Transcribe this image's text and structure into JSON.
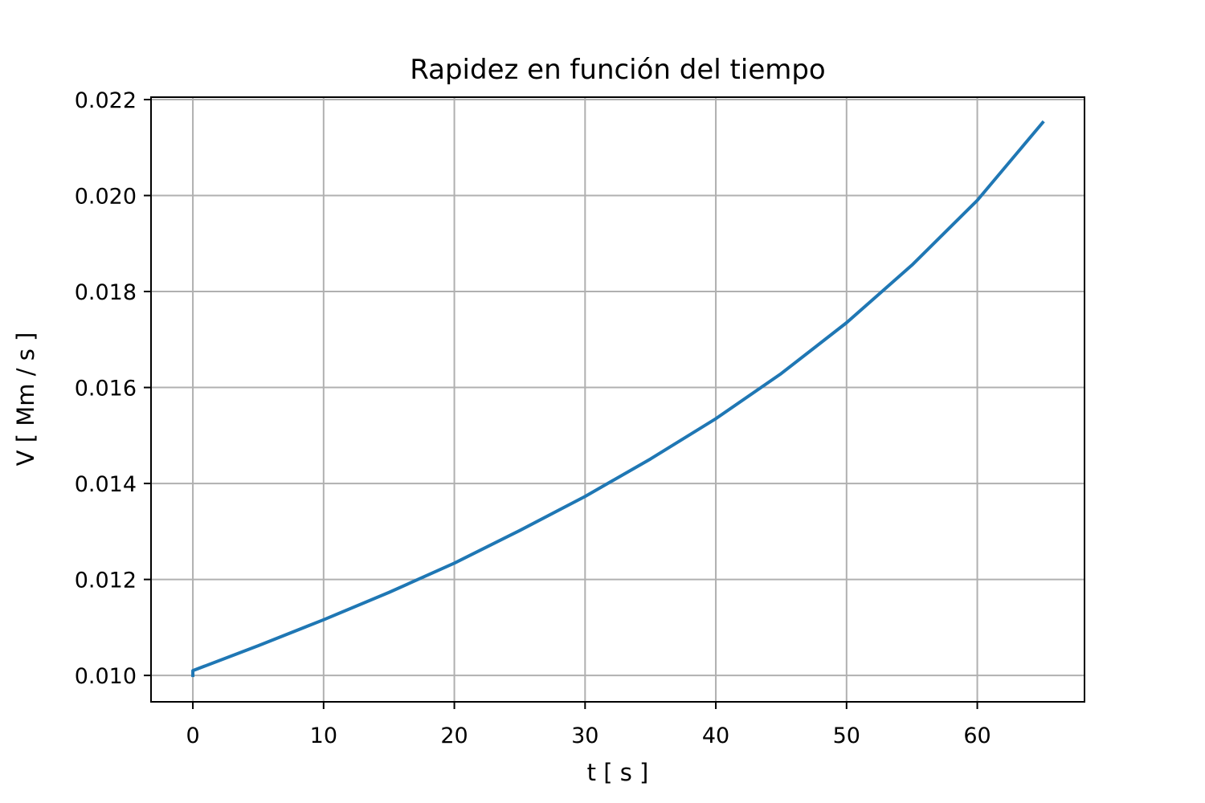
{
  "chart_data": {
    "type": "line",
    "title": "Rapidez en función del tiempo",
    "xlabel": "t [ s ]",
    "ylabel": "V [ Mm / s ]",
    "xlim": [
      -3.2,
      68.2
    ],
    "ylim": [
      0.00945,
      0.02205
    ],
    "xticks": [
      0,
      10,
      20,
      30,
      40,
      50,
      60
    ],
    "xtick_labels": [
      "0",
      "10",
      "20",
      "30",
      "40",
      "50",
      "60"
    ],
    "yticks": [
      0.01,
      0.012,
      0.014,
      0.016,
      0.018,
      0.02,
      0.022
    ],
    "ytick_labels": [
      "0.010",
      "0.012",
      "0.014",
      "0.016",
      "0.018",
      "0.020",
      "0.022"
    ],
    "grid": true,
    "series": [
      {
        "color": "#1f77b4",
        "x": [
          0,
          0,
          5,
          10,
          15,
          20,
          25,
          30,
          35,
          40,
          45,
          50,
          55,
          60,
          65
        ],
        "y": [
          0.01,
          0.0101,
          0.01062,
          0.01116,
          0.01173,
          0.01234,
          0.01302,
          0.01373,
          0.01451,
          0.01535,
          0.01629,
          0.01735,
          0.01855,
          0.0199,
          0.02152
        ]
      }
    ]
  }
}
